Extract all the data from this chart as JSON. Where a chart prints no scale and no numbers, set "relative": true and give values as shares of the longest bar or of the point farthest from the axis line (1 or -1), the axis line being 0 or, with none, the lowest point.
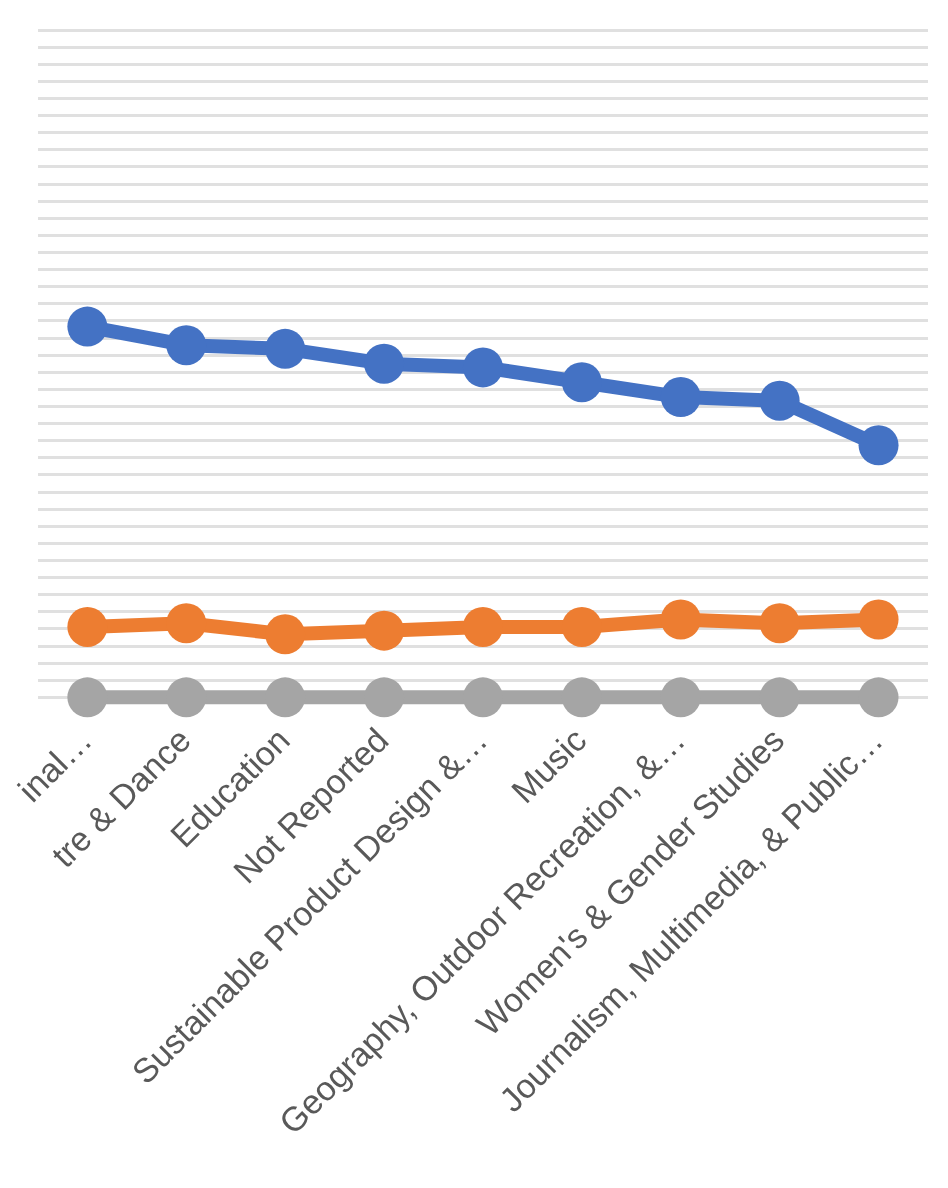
{
  "chart_data": {
    "type": "line",
    "relative": true,
    "grid": "y",
    "marker": "circle",
    "line_style": "solid",
    "legend": false,
    "categories": [
      "inal…",
      "tre & Dance",
      "Education",
      "Not Reported",
      "Sustainable Product Design &…",
      "Music",
      "Geography, Outdoor Recreation, &…",
      "Women's & Gender Studies",
      "Journalism, Multimedia, & Public…"
    ],
    "series": [
      {
        "color": "#4472c4",
        "values": [
          1,
          0.95,
          0.94,
          0.9,
          0.89,
          0.85,
          0.81,
          0.8,
          0.68
        ]
      },
      {
        "color": "#ed7d31",
        "values": [
          0.19,
          0.2,
          0.17,
          0.18,
          0.19,
          0.19,
          0.21,
          0.2,
          0.21
        ]
      },
      {
        "color": "#a5a5a5",
        "values": [
          0,
          0,
          0,
          0,
          0,
          0,
          0,
          0,
          0
        ]
      }
    ]
  }
}
